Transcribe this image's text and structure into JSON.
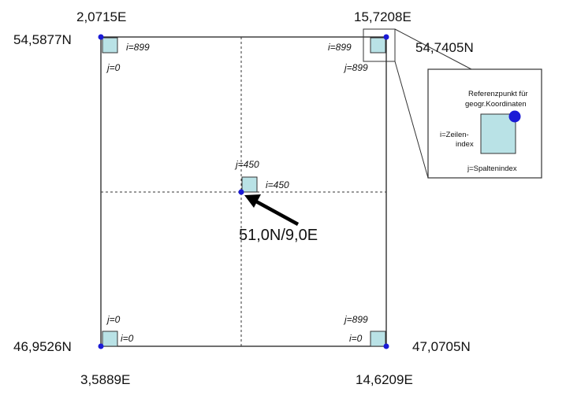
{
  "colors": {
    "line": "#222222",
    "cell_fill": "#b9e2e6",
    "cell_stroke": "#333333",
    "point": "#1a1ad6",
    "arrow": "#000000"
  },
  "corners": {
    "top_left": {
      "lon": "2,0715E",
      "lat": "54,5877N",
      "i": "i=899",
      "j": "j=0"
    },
    "top_right": {
      "lon": "15,7208E",
      "lat": "54,7405N",
      "i": "i=899",
      "j": "j=899"
    },
    "bottom_left": {
      "lon": "3,5889E",
      "lat": "46,9526N",
      "i": "i=0",
      "j": "j=0"
    },
    "bottom_right": {
      "lon": "14,6209E",
      "lat": "47,0705N",
      "i": "i=0",
      "j": "j=899"
    }
  },
  "center": {
    "i": "i=450",
    "j": "j=450",
    "label": "51,0N/9,0E"
  },
  "legend": {
    "title_line1": "Referenzpunkt für",
    "title_line2": "geogr.Koordinaten",
    "row_label_line1": "i=Zeilen-",
    "row_label_line2": "index",
    "col_label": "j=Spaltenindex"
  }
}
